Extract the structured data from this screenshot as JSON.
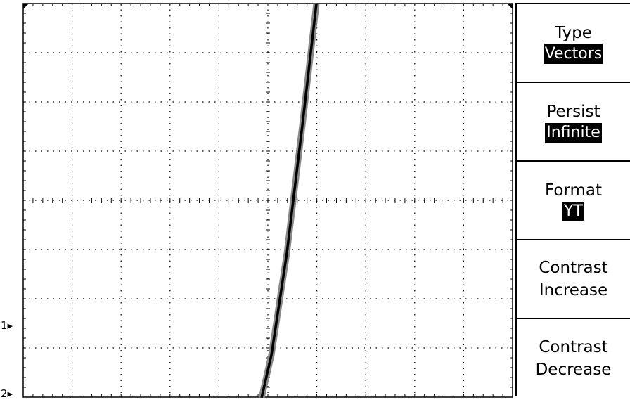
{
  "channel_markers": {
    "ch1": "1",
    "ch2": "2"
  },
  "menu": {
    "type": {
      "label": "Type",
      "value": "Vectors"
    },
    "persist": {
      "label": "Persist",
      "value": "Infinite"
    },
    "format": {
      "label": "Format",
      "value": "YT"
    },
    "contrast_increase": {
      "line1": "Contrast",
      "line2": "Increase"
    },
    "contrast_decrease": {
      "line1": "Contrast",
      "line2": "Decrease"
    }
  },
  "colors": {
    "background": "#ffffff",
    "trace": "#000000",
    "grid": "#000000",
    "highlight": "#000000"
  }
}
